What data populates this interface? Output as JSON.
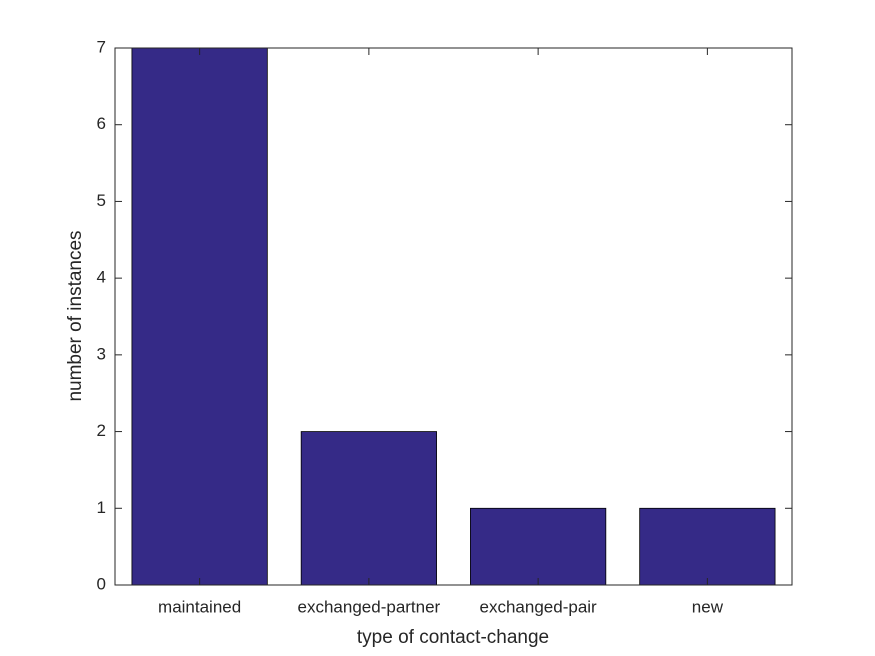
{
  "chart_data": {
    "type": "bar",
    "x_label": "type of contact-change",
    "y_label": "number of instances",
    "categories": [
      "maintained",
      "exchanged-partner",
      "exchanged-pair",
      "new"
    ],
    "values": [
      7,
      2,
      1,
      1
    ],
    "color": "#352a87",
    "ylim": [
      0,
      7
    ],
    "yticks": [
      0,
      1,
      2,
      3,
      4,
      5,
      6,
      7
    ],
    "grid": false
  }
}
